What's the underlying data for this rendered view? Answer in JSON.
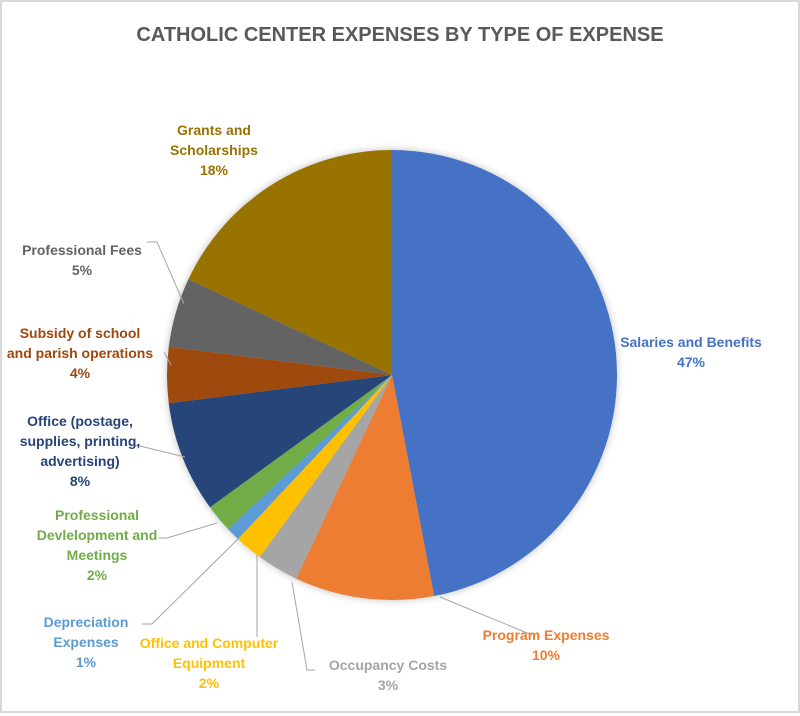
{
  "chart_data": {
    "type": "pie",
    "title": "CATHOLIC CENTER EXPENSES BY TYPE OF EXPENSE",
    "start": "12 o'clock, clockwise",
    "slices": [
      {
        "name": "Salaries and Benefits",
        "value": 47,
        "label": "47%",
        "color": "#4472C4",
        "label_color": "#4472C4"
      },
      {
        "name": "Program Expenses",
        "value": 10,
        "label": "10%",
        "color": "#ED7D31",
        "label_color": "#ED7D31"
      },
      {
        "name": "Occupancy Costs",
        "value": 3,
        "label": "3%",
        "color": "#A5A5A5",
        "label_color": "#A5A5A5"
      },
      {
        "name": "Office and Computer Equipment",
        "value": 2,
        "label": "2%",
        "color": "#FFC000",
        "label_color": "#FFC000"
      },
      {
        "name": "Depreciation Expenses",
        "value": 1,
        "label": "1%",
        "color": "#5B9BD5",
        "label_color": "#5B9BD5"
      },
      {
        "name": "Professional Devlelopment and Meetings",
        "value": 2,
        "label": "2%",
        "color": "#70AD47",
        "label_color": "#70AD47"
      },
      {
        "name": "Office (postage, supplies, printing, advertising)",
        "value": 8,
        "label": "8%",
        "color": "#264478",
        "label_color": "#264478"
      },
      {
        "name": "Subsidy of school and parish operations",
        "value": 4,
        "label": "4%",
        "color": "#9E480E",
        "label_color": "#9E480E"
      },
      {
        "name": "Professional Fees",
        "value": 5,
        "label": "5%",
        "color": "#636363",
        "label_color": "#636363"
      },
      {
        "name": "Grants and Scholarships",
        "value": 18,
        "label": "18%",
        "color": "#997300",
        "label_color": "#997300"
      }
    ],
    "label_lines": [
      [
        "Salaries and Benefits",
        "47%"
      ],
      [
        "Program Expenses",
        "10%"
      ],
      [
        "Occupancy Costs",
        "3%"
      ],
      [
        "Office and Computer",
        "Equipment",
        "2%"
      ],
      [
        "Depreciation",
        "Expenses",
        "1%"
      ],
      [
        "Professional",
        "Devlelopment and",
        "Meetings",
        "2%"
      ],
      [
        "Office (postage,",
        "supplies, printing,",
        "advertising)",
        "8%"
      ],
      [
        "Subsidy of school",
        "and parish operations",
        "4%"
      ],
      [
        "Professional Fees",
        "5%"
      ],
      [
        "Grants and",
        "Scholarships",
        "18%"
      ]
    ],
    "legend": "none (data labels with leader lines)"
  }
}
